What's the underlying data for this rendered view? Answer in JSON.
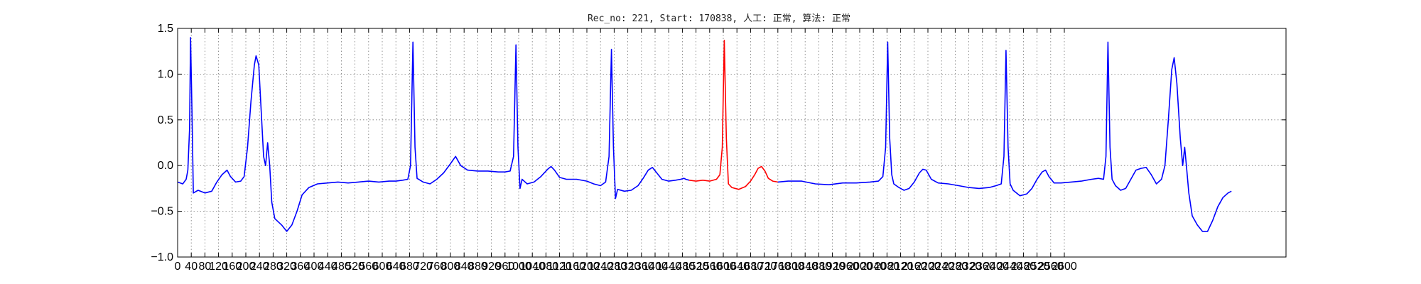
{
  "chart_data": {
    "type": "line",
    "title": "Rec_no: 221, Start: 170838, 人工: 正常, 算法: 正常",
    "xlabel": "",
    "ylabel": "",
    "xlim": [
      0,
      3250
    ],
    "ylim": [
      -1.0,
      1.5
    ],
    "grid": true,
    "grid_style": "dotted",
    "y_ticks": [
      "1.5",
      "1.0",
      "0.5",
      "0.0",
      "−0.5",
      "−1.0"
    ],
    "y_tick_values": [
      1.5,
      1.0,
      0.5,
      0.0,
      -0.5,
      -1.0
    ],
    "x_tick_step": 40,
    "x_tick_max": 2600,
    "x_tick_labels": [
      "0",
      "40",
      "80",
      "120",
      "160",
      "200",
      "240",
      "280",
      "320",
      "360",
      "400",
      "440",
      "480",
      "520",
      "560",
      "600",
      "640",
      "680",
      "720",
      "760",
      "800",
      "840",
      "880",
      "920",
      "960",
      "1000",
      "1040",
      "1080",
      "1120",
      "1160",
      "1200",
      "1240",
      "1280",
      "1320",
      "1360",
      "1400",
      "1440",
      "1480",
      "1520",
      "1560",
      "1600",
      "1640",
      "1680",
      "1720",
      "1760",
      "1800",
      "1840",
      "1880",
      "1920",
      "1960",
      "2000",
      "2040",
      "2080",
      "2120",
      "2160",
      "2200",
      "2240",
      "2280",
      "2320",
      "2360",
      "2400",
      "2440",
      "2480",
      "2520",
      "2560",
      "2600"
    ],
    "series": [
      {
        "color": "#0000ff",
        "points": [
          [
            0,
            -0.18
          ],
          [
            15,
            -0.2
          ],
          [
            25,
            -0.15
          ],
          [
            30,
            -0.05
          ],
          [
            35,
            0.4
          ],
          [
            38,
            1.4
          ],
          [
            42,
            0.6
          ],
          [
            46,
            -0.3
          ],
          [
            60,
            -0.27
          ],
          [
            80,
            -0.3
          ],
          [
            100,
            -0.28
          ],
          [
            115,
            -0.18
          ],
          [
            130,
            -0.1
          ],
          [
            145,
            -0.05
          ],
          [
            155,
            -0.12
          ],
          [
            170,
            -0.18
          ],
          [
            185,
            -0.17
          ],
          [
            195,
            -0.12
          ],
          [
            205,
            0.2
          ],
          [
            215,
            0.7
          ],
          [
            225,
            1.1
          ],
          [
            230,
            1.2
          ],
          [
            238,
            1.1
          ],
          [
            245,
            0.6
          ],
          [
            252,
            0.1
          ],
          [
            258,
            0.0
          ],
          [
            264,
            0.25
          ],
          [
            270,
            0.0
          ],
          [
            276,
            -0.4
          ],
          [
            285,
            -0.58
          ],
          [
            305,
            -0.65
          ],
          [
            320,
            -0.72
          ],
          [
            335,
            -0.65
          ],
          [
            350,
            -0.5
          ],
          [
            365,
            -0.32
          ],
          [
            385,
            -0.24
          ],
          [
            410,
            -0.2
          ],
          [
            440,
            -0.19
          ],
          [
            470,
            -0.18
          ],
          [
            500,
            -0.19
          ],
          [
            530,
            -0.18
          ],
          [
            560,
            -0.17
          ],
          [
            590,
            -0.18
          ],
          [
            620,
            -0.17
          ],
          [
            640,
            -0.17
          ],
          [
            660,
            -0.16
          ],
          [
            675,
            -0.15
          ],
          [
            683,
            0.0
          ],
          [
            690,
            1.35
          ],
          [
            696,
            0.2
          ],
          [
            702,
            -0.14
          ],
          [
            720,
            -0.18
          ],
          [
            740,
            -0.2
          ],
          [
            760,
            -0.15
          ],
          [
            780,
            -0.08
          ],
          [
            800,
            0.02
          ],
          [
            815,
            0.1
          ],
          [
            830,
            0.0
          ],
          [
            850,
            -0.05
          ],
          [
            880,
            -0.06
          ],
          [
            910,
            -0.06
          ],
          [
            940,
            -0.07
          ],
          [
            960,
            -0.07
          ],
          [
            975,
            -0.06
          ],
          [
            985,
            0.1
          ],
          [
            992,
            1.32
          ],
          [
            998,
            0.2
          ],
          [
            1004,
            -0.25
          ],
          [
            1010,
            -0.15
          ],
          [
            1025,
            -0.2
          ],
          [
            1045,
            -0.18
          ],
          [
            1065,
            -0.12
          ],
          [
            1085,
            -0.04
          ],
          [
            1095,
            -0.01
          ],
          [
            1105,
            -0.05
          ],
          [
            1120,
            -0.13
          ],
          [
            1140,
            -0.15
          ],
          [
            1170,
            -0.15
          ],
          [
            1200,
            -0.17
          ],
          [
            1220,
            -0.2
          ],
          [
            1240,
            -0.22
          ],
          [
            1255,
            -0.18
          ],
          [
            1265,
            0.1
          ],
          [
            1272,
            1.27
          ],
          [
            1278,
            0.2
          ],
          [
            1284,
            -0.36
          ],
          [
            1290,
            -0.26
          ],
          [
            1310,
            -0.28
          ],
          [
            1330,
            -0.27
          ],
          [
            1350,
            -0.22
          ],
          [
            1365,
            -0.14
          ],
          [
            1380,
            -0.05
          ],
          [
            1392,
            -0.02
          ],
          [
            1405,
            -0.08
          ],
          [
            1420,
            -0.15
          ],
          [
            1440,
            -0.17
          ],
          [
            1460,
            -0.16
          ],
          [
            1475,
            -0.15
          ],
          [
            1485,
            -0.14
          ],
          [
            1490,
            -0.15
          ],
          [
            1500,
            -0.16
          ]
        ]
      },
      {
        "color": "#ff0000",
        "points": [
          [
            1500,
            -0.16
          ],
          [
            1520,
            -0.17
          ],
          [
            1540,
            -0.16
          ],
          [
            1560,
            -0.17
          ],
          [
            1580,
            -0.15
          ],
          [
            1590,
            -0.1
          ],
          [
            1597,
            0.2
          ],
          [
            1603,
            1.37
          ],
          [
            1609,
            0.3
          ],
          [
            1615,
            -0.2
          ],
          [
            1625,
            -0.24
          ],
          [
            1645,
            -0.26
          ],
          [
            1665,
            -0.23
          ],
          [
            1680,
            -0.17
          ],
          [
            1692,
            -0.1
          ],
          [
            1702,
            -0.03
          ],
          [
            1712,
            -0.01
          ],
          [
            1722,
            -0.06
          ],
          [
            1732,
            -0.14
          ],
          [
            1745,
            -0.17
          ],
          [
            1760,
            -0.18
          ]
        ]
      },
      {
        "color": "#0000ff",
        "points": [
          [
            1760,
            -0.18
          ],
          [
            1790,
            -0.17
          ],
          [
            1830,
            -0.17
          ],
          [
            1870,
            -0.2
          ],
          [
            1910,
            -0.21
          ],
          [
            1950,
            -0.19
          ],
          [
            1990,
            -0.19
          ],
          [
            2030,
            -0.18
          ],
          [
            2055,
            -0.17
          ],
          [
            2068,
            -0.12
          ],
          [
            2076,
            0.2
          ],
          [
            2082,
            1.35
          ],
          [
            2088,
            0.3
          ],
          [
            2094,
            -0.1
          ],
          [
            2100,
            -0.2
          ],
          [
            2115,
            -0.24
          ],
          [
            2130,
            -0.27
          ],
          [
            2145,
            -0.25
          ],
          [
            2160,
            -0.18
          ],
          [
            2175,
            -0.08
          ],
          [
            2185,
            -0.04
          ],
          [
            2195,
            -0.05
          ],
          [
            2210,
            -0.15
          ],
          [
            2230,
            -0.19
          ],
          [
            2260,
            -0.2
          ],
          [
            2290,
            -0.22
          ],
          [
            2320,
            -0.24
          ],
          [
            2350,
            -0.25
          ],
          [
            2380,
            -0.24
          ],
          [
            2400,
            -0.22
          ],
          [
            2415,
            -0.2
          ],
          [
            2423,
            0.1
          ],
          [
            2429,
            1.26
          ],
          [
            2435,
            0.2
          ],
          [
            2441,
            -0.2
          ],
          [
            2450,
            -0.27
          ],
          [
            2470,
            -0.33
          ],
          [
            2490,
            -0.31
          ],
          [
            2505,
            -0.25
          ],
          [
            2520,
            -0.15
          ],
          [
            2535,
            -0.07
          ],
          [
            2545,
            -0.05
          ],
          [
            2555,
            -0.12
          ],
          [
            2570,
            -0.19
          ],
          [
            2590,
            -0.19
          ],
          [
            2620,
            -0.18
          ],
          [
            2650,
            -0.17
          ],
          [
            2680,
            -0.15
          ],
          [
            2700,
            -0.14
          ],
          [
            2715,
            -0.15
          ],
          [
            2722,
            0.1
          ],
          [
            2728,
            1.35
          ],
          [
            2734,
            0.2
          ],
          [
            2740,
            -0.15
          ],
          [
            2750,
            -0.22
          ],
          [
            2765,
            -0.27
          ],
          [
            2780,
            -0.25
          ],
          [
            2795,
            -0.15
          ],
          [
            2810,
            -0.05
          ],
          [
            2825,
            -0.03
          ],
          [
            2840,
            -0.02
          ],
          [
            2855,
            -0.1
          ],
          [
            2870,
            -0.2
          ],
          [
            2885,
            -0.15
          ],
          [
            2895,
            0.0
          ],
          [
            2905,
            0.5
          ],
          [
            2915,
            1.05
          ],
          [
            2922,
            1.18
          ],
          [
            2930,
            0.9
          ],
          [
            2940,
            0.3
          ],
          [
            2947,
            0.0
          ],
          [
            2953,
            0.2
          ],
          [
            2958,
            0.0
          ],
          [
            2965,
            -0.3
          ],
          [
            2975,
            -0.55
          ],
          [
            2990,
            -0.65
          ],
          [
            3005,
            -0.72
          ],
          [
            3020,
            -0.72
          ],
          [
            3035,
            -0.6
          ],
          [
            3050,
            -0.45
          ],
          [
            3065,
            -0.35
          ],
          [
            3080,
            -0.3
          ],
          [
            3090,
            -0.28
          ]
        ]
      }
    ]
  }
}
